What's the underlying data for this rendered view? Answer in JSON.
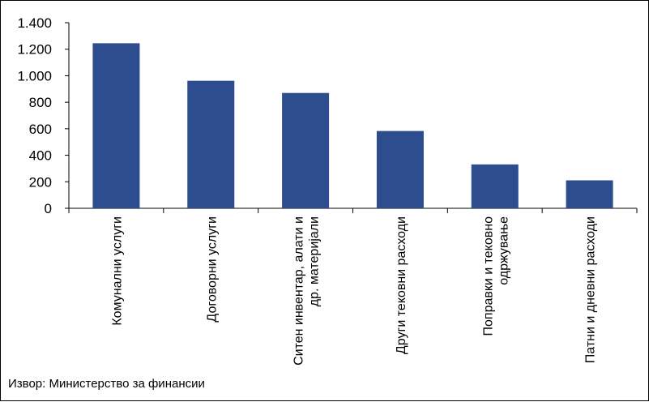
{
  "chart_data": {
    "type": "bar",
    "categories": [
      [
        "Комунални услуги"
      ],
      [
        "Договорни услуги"
      ],
      [
        "Ситен инвентар, алати и",
        "др. материјали"
      ],
      [
        "Други тековни расходи"
      ],
      [
        "Поправки и тековно",
        "одржување"
      ],
      [
        "Патни и дневни расходи"
      ]
    ],
    "values": [
      1245,
      962,
      870,
      583,
      331,
      211
    ],
    "ylim": [
      0,
      1400
    ],
    "yticks": [
      0,
      200,
      400,
      600,
      800,
      1000,
      1200,
      1400
    ],
    "ytick_labels": [
      "0",
      "200",
      "400",
      "600",
      "800",
      "1.000",
      "1.200",
      "1.400"
    ],
    "bar_color": "#2E4D8F",
    "grid": false,
    "legend": "none"
  },
  "source": "Извор: Министерство за финансии"
}
